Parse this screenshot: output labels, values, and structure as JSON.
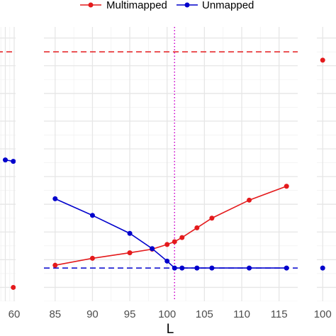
{
  "chart_data": {
    "type": "line",
    "xlabel": "L",
    "legend": {
      "placement": "top-center",
      "entries": [
        {
          "name": "Multimapped",
          "color": "#e41a1c"
        },
        {
          "name": "Unmapped",
          "color": "#0000cc"
        }
      ]
    },
    "grid": true,
    "panels": [
      {
        "id": "left-panel",
        "xlim": [
          40,
          60.8
        ],
        "x_ticks": [
          40,
          45,
          50,
          55,
          60
        ],
        "x_tick_labels": [
          "",
          "",
          "",
          "",
          "60"
        ],
        "series": [
          {
            "name": "Multimapped",
            "color": "#e41a1c",
            "x": [
              59.5
            ],
            "y": [
              0.0
            ]
          },
          {
            "name": "Unmapped",
            "color": "#0000cc",
            "x": [
              55,
              59.5
            ],
            "y": [
              0.46,
              0.455
            ]
          }
        ],
        "hlines": [
          {
            "color": "#e41a1c",
            "style": "dashed",
            "y": 0.85
          }
        ],
        "vlines": []
      },
      {
        "id": "middle-panel",
        "xlim": [
          83.5,
          117.5
        ],
        "x_ticks": [
          85,
          90,
          95,
          100,
          105,
          110,
          115
        ],
        "x_tick_labels": [
          "85",
          "90",
          "95",
          "100",
          "105",
          "110",
          "115"
        ],
        "series": [
          {
            "name": "Multimapped",
            "color": "#e41a1c",
            "x": [
              85,
              90,
              95,
              98,
              100,
              101,
              102,
              104,
              106,
              111,
              116
            ],
            "y": [
              0.08,
              0.105,
              0.125,
              0.138,
              0.155,
              0.165,
              0.18,
              0.215,
              0.25,
              0.315,
              0.365
            ]
          },
          {
            "name": "Unmapped",
            "color": "#0000cc",
            "x": [
              85,
              90,
              95,
              98,
              100,
              101,
              102,
              104,
              106,
              111,
              116
            ],
            "y": [
              0.32,
              0.26,
              0.195,
              0.14,
              0.095,
              0.07,
              0.07,
              0.07,
              0.07,
              0.07,
              0.07
            ]
          }
        ],
        "hlines": [
          {
            "color": "#e41a1c",
            "style": "dashed",
            "y": 0.85
          },
          {
            "color": "#0000cc",
            "style": "dashed",
            "y": 0.07
          }
        ],
        "vlines": [
          {
            "color": "#cc00cc",
            "style": "dotted",
            "x": 101
          }
        ]
      },
      {
        "id": "right-panel",
        "xlim": [
          98.5,
          110
        ],
        "x_ticks": [
          100
        ],
        "x_tick_labels": [
          "100"
        ],
        "series": [
          {
            "name": "Multimapped",
            "color": "#e41a1c",
            "x": [
              100
            ],
            "y": [
              0.82
            ]
          },
          {
            "name": "Unmapped",
            "color": "#0000cc",
            "x": [
              100
            ],
            "y": [
              0.07
            ]
          }
        ],
        "hlines": [],
        "vlines": []
      }
    ],
    "ylim": [
      -0.05,
      0.94
    ]
  }
}
